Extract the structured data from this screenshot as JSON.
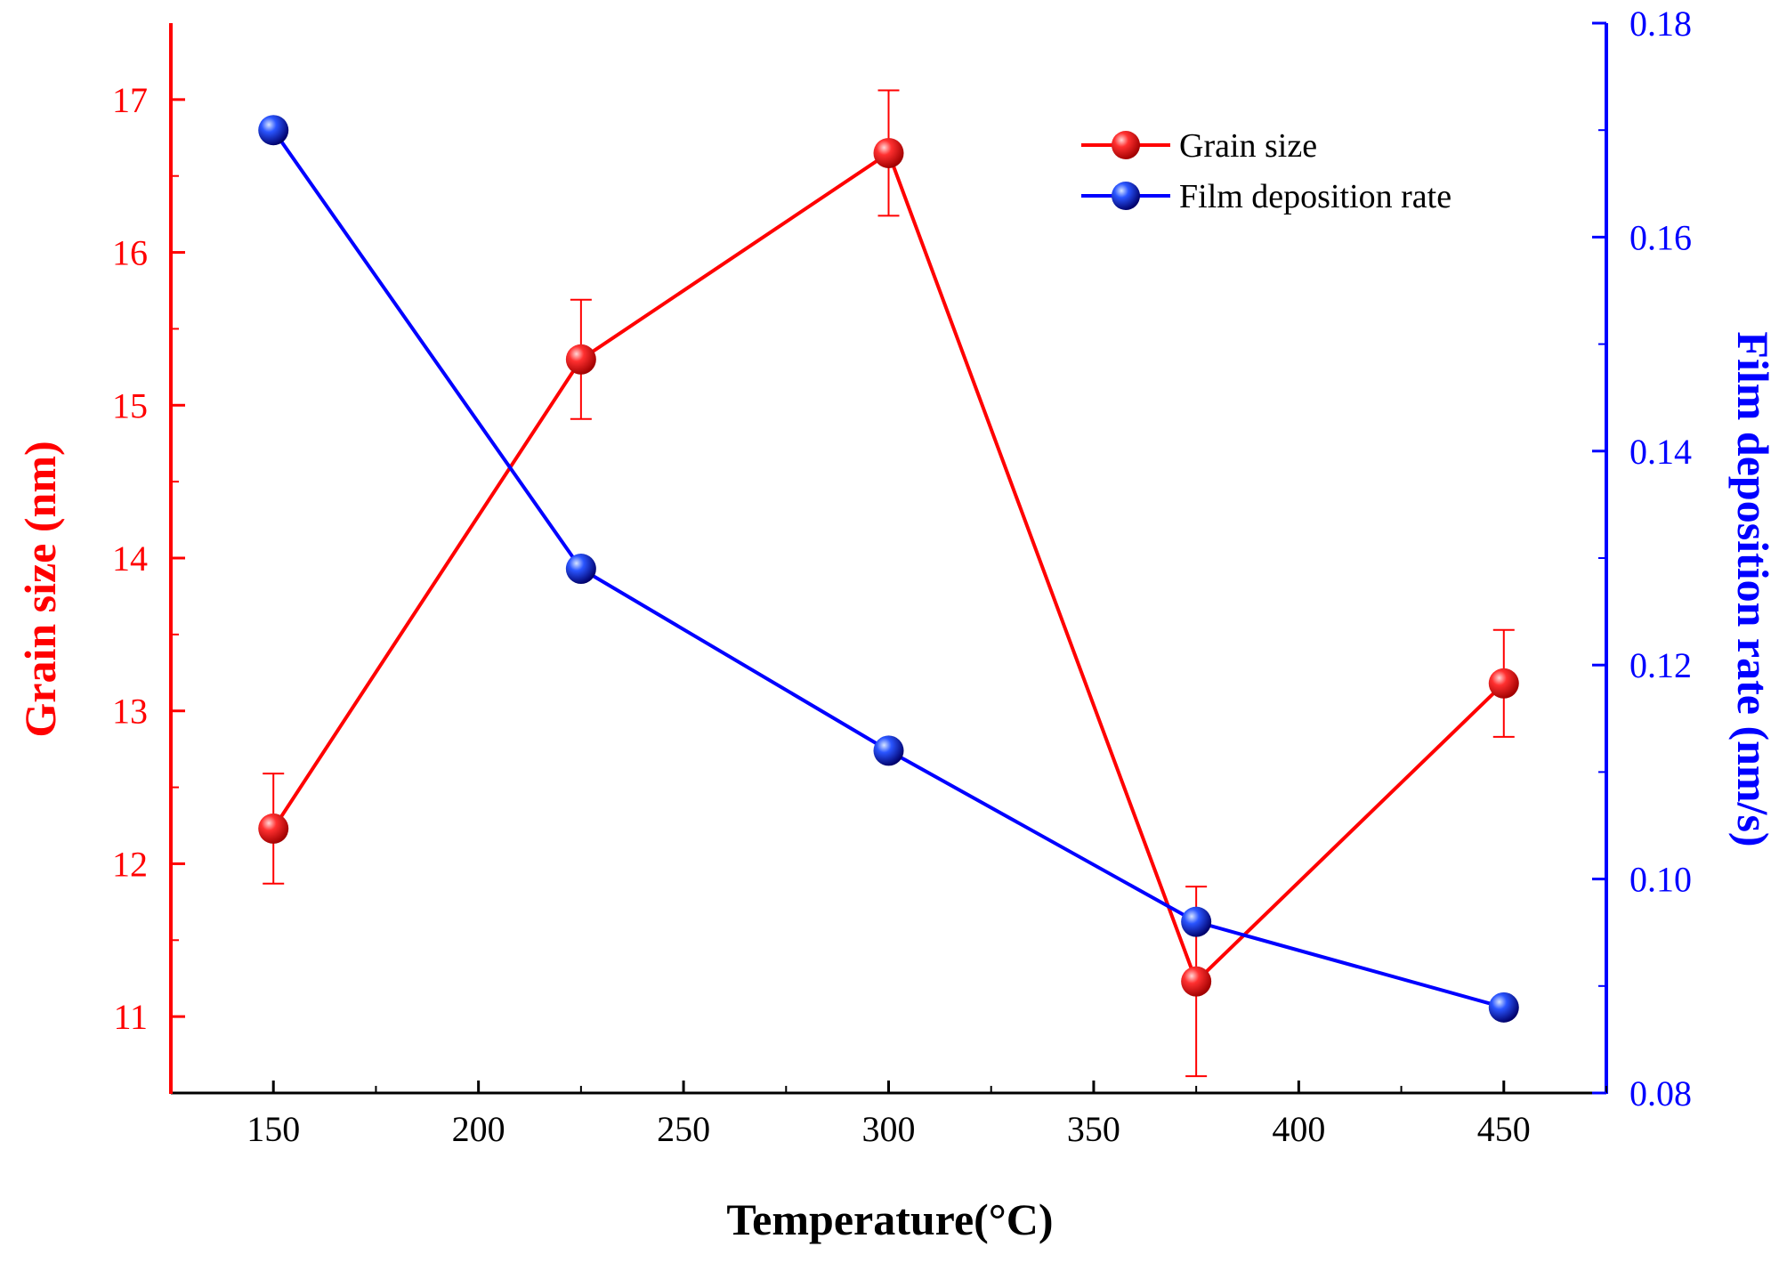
{
  "chart_data": {
    "type": "line",
    "title": "",
    "xlabel": "Temperature(°C)",
    "ylabel": "Grain size (nm)",
    "y2label": "Film deposition rate (nm/s)",
    "xlim": [
      125,
      475
    ],
    "ylim": [
      10.5,
      17.5
    ],
    "y2lim": [
      0.08,
      0.18
    ],
    "x_ticks": [
      150,
      200,
      250,
      300,
      350,
      400,
      450
    ],
    "y_ticks": [
      11,
      12,
      13,
      14,
      15,
      16,
      17
    ],
    "y2_ticks": [
      0.08,
      0.1,
      0.12,
      0.14,
      0.16,
      0.18
    ],
    "y2_tick_labels": [
      "0.08",
      "0.10",
      "0.12",
      "0.14",
      "0.16",
      "0.18"
    ],
    "grid": false,
    "legend_position": "top-right",
    "colors": {
      "grain": "#ff0000",
      "rate": "#0000ff",
      "axis": "#000000"
    },
    "series": [
      {
        "name": "Grain size",
        "axis": "left",
        "x": [
          150,
          225,
          300,
          375,
          450
        ],
        "values": [
          12.23,
          15.3,
          16.65,
          11.23,
          13.18
        ],
        "errors": [
          0.36,
          0.39,
          0.41,
          0.62,
          0.35
        ]
      },
      {
        "name": "Film deposition rate",
        "axis": "right",
        "x": [
          150,
          225,
          300,
          375,
          450
        ],
        "values": [
          0.17,
          0.129,
          0.112,
          0.096,
          0.088
        ]
      }
    ]
  }
}
